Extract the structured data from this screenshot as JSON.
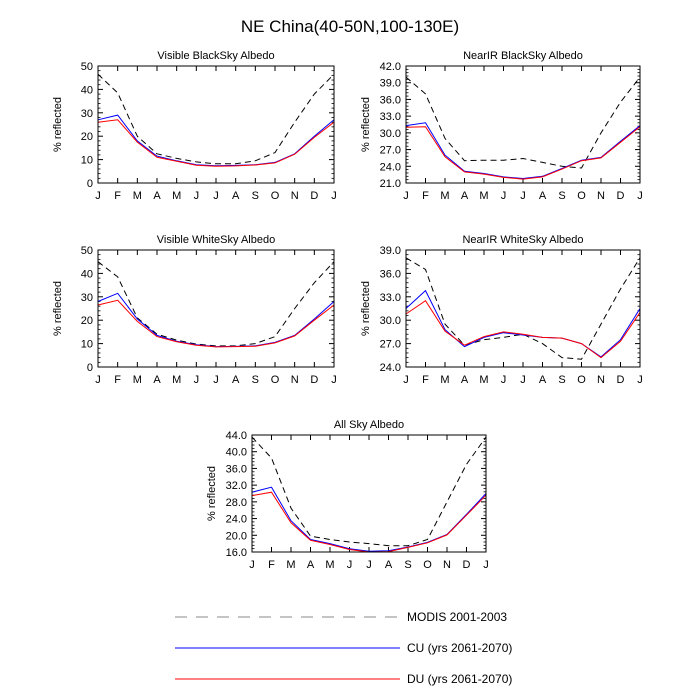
{
  "figure": {
    "title": "NE China(40-50N,100-130E)",
    "legend": [
      {
        "label": "MODIS 2001-2003",
        "color": "#000000",
        "style": "dashed"
      },
      {
        "label": "CU (yrs 2061-2070)",
        "color": "#0000ff",
        "style": "solid"
      },
      {
        "label": "DU (yrs 2061-2070)",
        "color": "#ff0000",
        "style": "solid"
      }
    ]
  },
  "chart_data": [
    {
      "type": "line",
      "title": "Visible BlackSky Albedo",
      "xlabel": "",
      "ylabel": "% reflected",
      "categories": [
        "J",
        "F",
        "M",
        "A",
        "M",
        "J",
        "J",
        "A",
        "S",
        "O",
        "N",
        "D",
        "J"
      ],
      "ylim": [
        0,
        50
      ],
      "yticks": [
        "0",
        "10",
        "20",
        "30",
        "40",
        "50"
      ],
      "series": [
        {
          "name": "MODIS 2001-2003",
          "color": "#000000",
          "dash": true,
          "values": [
            46.5,
            38.5,
            20,
            12.5,
            10.5,
            9,
            8.2,
            8.2,
            9.5,
            13,
            26,
            38,
            46.5
          ]
        },
        {
          "name": "CU (yrs 2061-2070)",
          "color": "#0000ff",
          "dash": false,
          "values": [
            27,
            29,
            18,
            11.5,
            9.5,
            7.8,
            7.4,
            7.5,
            7.8,
            8.8,
            12.5,
            20,
            27
          ]
        },
        {
          "name": "DU (yrs 2061-2070)",
          "color": "#ff0000",
          "dash": false,
          "values": [
            26,
            27,
            17.5,
            11,
            9.3,
            7.6,
            7.2,
            7.3,
            7.7,
            8.6,
            12.3,
            19.5,
            26
          ]
        }
      ]
    },
    {
      "type": "line",
      "title": "NearIR BlackSky Albedo",
      "xlabel": "",
      "ylabel": "% reflected",
      "categories": [
        "J",
        "F",
        "M",
        "A",
        "M",
        "J",
        "J",
        "A",
        "S",
        "O",
        "N",
        "D",
        "J"
      ],
      "ylim": [
        21.0,
        42.0
      ],
      "yticks": [
        "21.0",
        "24.0",
        "27.0",
        "30.0",
        "33.0",
        "36.0",
        "39.0",
        "42.0"
      ],
      "series": [
        {
          "name": "MODIS 2001-2003",
          "color": "#000000",
          "dash": true,
          "values": [
            40,
            37,
            29,
            25,
            25.1,
            25.1,
            25.4,
            24.7,
            24,
            23.7,
            30,
            35.5,
            40
          ]
        },
        {
          "name": "CU (yrs 2061-2070)",
          "color": "#0000ff",
          "dash": false,
          "values": [
            31.3,
            31.8,
            26,
            23.1,
            22.7,
            22.1,
            21.8,
            22.2,
            23.6,
            25.1,
            25.6,
            28.5,
            31.3
          ]
        },
        {
          "name": "DU (yrs 2061-2070)",
          "color": "#ff0000",
          "dash": false,
          "values": [
            31,
            31.1,
            25.7,
            23,
            22.6,
            22,
            21.7,
            22.1,
            23.5,
            25,
            25.5,
            28.3,
            31.1
          ]
        }
      ]
    },
    {
      "type": "line",
      "title": "Visible WhiteSky Albedo",
      "xlabel": "",
      "ylabel": "% reflected",
      "categories": [
        "J",
        "F",
        "M",
        "A",
        "M",
        "J",
        "J",
        "A",
        "S",
        "O",
        "N",
        "D",
        "J"
      ],
      "ylim": [
        0,
        50
      ],
      "yticks": [
        "0",
        "10",
        "20",
        "30",
        "40",
        "50"
      ],
      "series": [
        {
          "name": "MODIS 2001-2003",
          "color": "#000000",
          "dash": true,
          "values": [
            45,
            38.5,
            21,
            14,
            11.5,
            9.8,
            9,
            9,
            10,
            13,
            25,
            36,
            45
          ]
        },
        {
          "name": "CU (yrs 2061-2070)",
          "color": "#0000ff",
          "dash": false,
          "values": [
            28,
            31.5,
            20.5,
            13.5,
            11,
            9.5,
            8.7,
            8.8,
            9,
            10.5,
            13.5,
            20.5,
            28
          ]
        },
        {
          "name": "DU (yrs 2061-2070)",
          "color": "#ff0000",
          "dash": false,
          "values": [
            26.5,
            28.5,
            19.5,
            13,
            10.8,
            9.3,
            8.6,
            8.7,
            8.9,
            10.3,
            13.3,
            20,
            26.5
          ]
        }
      ]
    },
    {
      "type": "line",
      "title": "NearIR WhiteSky Albedo",
      "xlabel": "",
      "ylabel": "% reflected",
      "categories": [
        "J",
        "F",
        "M",
        "A",
        "M",
        "J",
        "J",
        "A",
        "S",
        "O",
        "N",
        "D",
        "J"
      ],
      "ylim": [
        24.0,
        39.0
      ],
      "yticks": [
        "24.0",
        "27.0",
        "30.0",
        "33.0",
        "36.0",
        "39.0"
      ],
      "series": [
        {
          "name": "MODIS 2001-2003",
          "color": "#000000",
          "dash": true,
          "values": [
            38,
            36.5,
            29.5,
            26.8,
            27.5,
            27.8,
            28.2,
            27,
            25.2,
            25,
            29.5,
            34,
            38
          ]
        },
        {
          "name": "CU (yrs 2061-2070)",
          "color": "#0000ff",
          "dash": false,
          "values": [
            31.5,
            33.8,
            28.8,
            26.6,
            27.8,
            28.4,
            28.1,
            27.8,
            27.7,
            27,
            25.3,
            27.5,
            31.5
          ]
        },
        {
          "name": "DU (yrs 2061-2070)",
          "color": "#ff0000",
          "dash": false,
          "values": [
            30.8,
            32.5,
            28.6,
            26.8,
            27.9,
            28.5,
            28.2,
            27.8,
            27.7,
            27,
            25.2,
            27.3,
            31
          ]
        }
      ]
    },
    {
      "type": "line",
      "title": "All Sky Albedo",
      "xlabel": "",
      "ylabel": "% reflected",
      "categories": [
        "J",
        "F",
        "M",
        "A",
        "M",
        "J",
        "J",
        "A",
        "S",
        "O",
        "N",
        "D",
        "J"
      ],
      "ylim": [
        16.0,
        44.0
      ],
      "yticks": [
        "16.0",
        "20.0",
        "24.0",
        "28.0",
        "32.0",
        "36.0",
        "40.0",
        "44.0"
      ],
      "series": [
        {
          "name": "MODIS 2001-2003",
          "color": "#000000",
          "dash": true,
          "values": [
            43.5,
            38.5,
            26.5,
            19.8,
            19,
            18.4,
            18,
            17.5,
            17.5,
            19,
            28,
            37,
            43.5
          ]
        },
        {
          "name": "CU (yrs 2061-2070)",
          "color": "#0000ff",
          "dash": false,
          "values": [
            30.3,
            31.5,
            23.5,
            19,
            18,
            16.8,
            16.2,
            16.3,
            17.2,
            18.3,
            20.2,
            25,
            30
          ]
        },
        {
          "name": "DU (yrs 2061-2070)",
          "color": "#ff0000",
          "dash": false,
          "values": [
            29.5,
            30.3,
            23,
            18.8,
            17.8,
            16.6,
            16,
            16.1,
            17.1,
            18.2,
            20.1,
            24.8,
            29.6
          ]
        }
      ]
    }
  ]
}
